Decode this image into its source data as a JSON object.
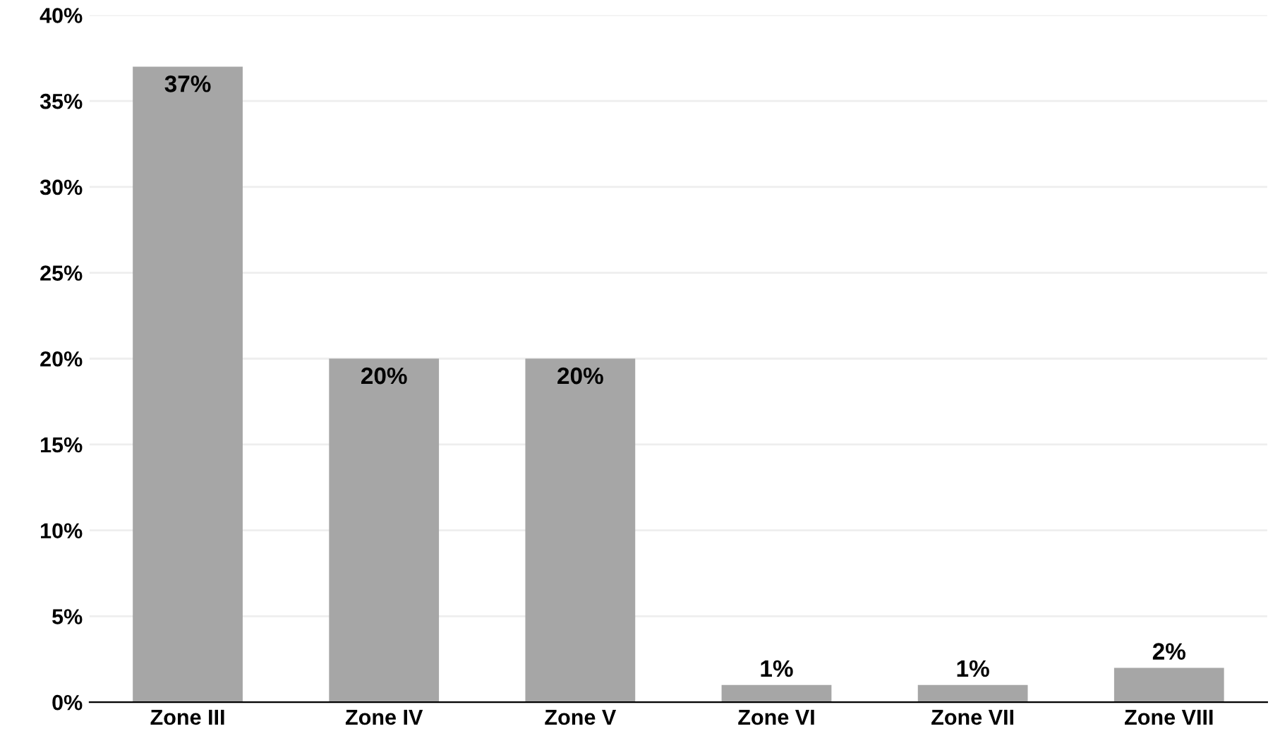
{
  "chart_data": {
    "type": "bar",
    "categories": [
      "Zone III",
      "Zone IV",
      "Zone V",
      "Zone VI",
      "Zone VII",
      "Zone VIII"
    ],
    "values": [
      37,
      20,
      20,
      1,
      1,
      2
    ],
    "color": "#a6a6a6",
    "value_labels": [
      "37%",
      "20%",
      "20%",
      "1%",
      "1%",
      "2%"
    ],
    "ylim": [
      0,
      40
    ],
    "yticks": [
      {
        "value": 0,
        "label": "0%"
      },
      {
        "value": 5,
        "label": "5%"
      },
      {
        "value": 10,
        "label": "10%"
      },
      {
        "value": 15,
        "label": "15%"
      },
      {
        "value": 20,
        "label": "20%"
      },
      {
        "value": 25,
        "label": "25%"
      },
      {
        "value": 30,
        "label": "30%"
      },
      {
        "value": 35,
        "label": "35%"
      },
      {
        "value": 40,
        "label": "40%"
      }
    ],
    "grid": "y",
    "legend": false
  }
}
